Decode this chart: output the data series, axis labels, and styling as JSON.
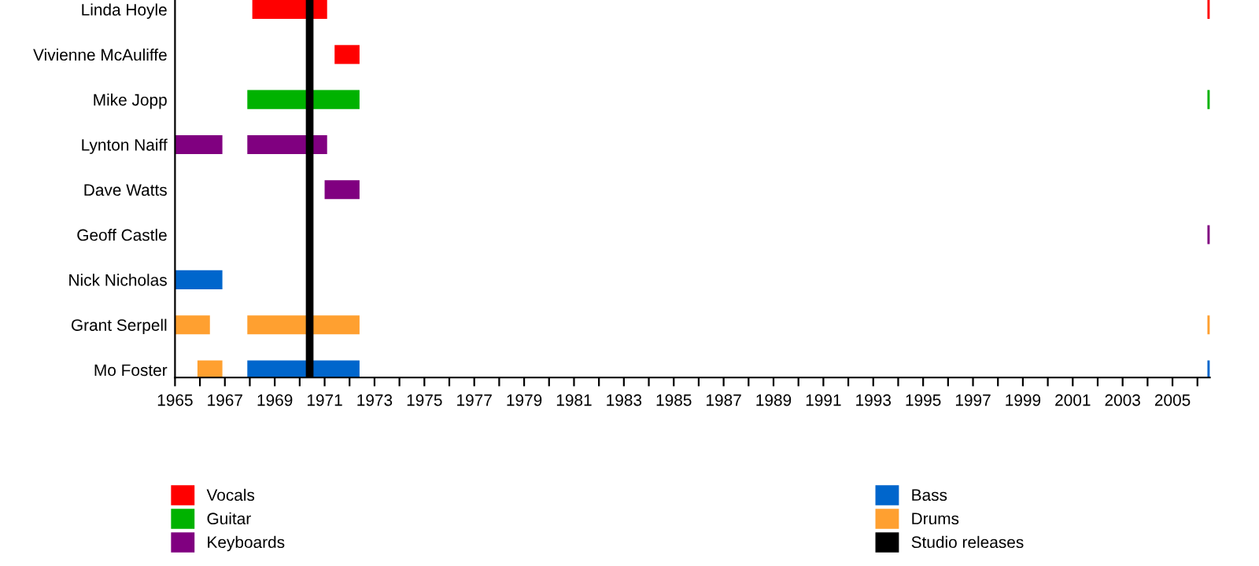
{
  "chart_data": {
    "type": "bar",
    "orientation": "horizontal",
    "categories": [
      "Linda Hoyle",
      "Vivienne McAuliffe",
      "Mike Jopp",
      "Lynton Naiff",
      "Dave Watts",
      "Geoff Castle",
      "Nick Nicholas",
      "Grant Serpell",
      "Mo Foster"
    ],
    "series": [
      {
        "name": "Vocals",
        "color": "#ff0000",
        "base": [
          1968.1,
          1971.4,
          null,
          null,
          null,
          null,
          null,
          null,
          null
        ],
        "values": [
          3.0,
          1.0,
          null,
          null,
          null,
          null,
          null,
          null,
          null
        ]
      },
      {
        "color": "#ff0000",
        "base": [
          2006.4,
          null,
          null,
          null,
          null,
          null,
          null,
          null,
          null
        ],
        "values": [
          0.1,
          null,
          null,
          null,
          null,
          null,
          null,
          null,
          null
        ]
      },
      {
        "name": "Guitar",
        "color": "#00b200",
        "base": [
          null,
          null,
          1967.9,
          null,
          null,
          null,
          null,
          null,
          null
        ],
        "values": [
          null,
          null,
          4.5,
          null,
          null,
          null,
          null,
          null,
          null
        ]
      },
      {
        "color": "#00b200",
        "base": [
          null,
          null,
          2006.4,
          null,
          null,
          null,
          null,
          null,
          null
        ],
        "values": [
          null,
          null,
          0.1,
          null,
          null,
          null,
          null,
          null,
          null
        ]
      },
      {
        "name": "Keyboards",
        "color": "#800080",
        "base": [
          null,
          null,
          null,
          1965.0,
          1971.0,
          null,
          null,
          null,
          null
        ],
        "values": [
          null,
          null,
          null,
          1.9,
          1.4,
          null,
          null,
          null,
          null
        ]
      },
      {
        "color": "#800080",
        "base": [
          null,
          null,
          null,
          1967.9,
          null,
          2006.4,
          null,
          null,
          null
        ],
        "values": [
          null,
          null,
          null,
          3.2,
          null,
          0.1,
          null,
          null,
          null
        ]
      },
      {
        "name": "Bass",
        "color": "#0066cc",
        "base": [
          null,
          null,
          null,
          null,
          null,
          null,
          1965.0,
          null,
          1967.9
        ],
        "values": [
          null,
          null,
          null,
          null,
          null,
          null,
          1.9,
          null,
          4.5
        ]
      },
      {
        "color": "#0066cc",
        "base": [
          null,
          null,
          null,
          null,
          null,
          null,
          null,
          null,
          2006.4
        ],
        "values": [
          null,
          null,
          null,
          null,
          null,
          null,
          null,
          null,
          0.1
        ]
      },
      {
        "name": "Drums",
        "color": "#ffa030",
        "base": [
          null,
          null,
          null,
          null,
          null,
          null,
          null,
          1965.0,
          1965.9
        ],
        "values": [
          null,
          null,
          null,
          null,
          null,
          null,
          null,
          1.4,
          1.0
        ]
      },
      {
        "color": "#ffa030",
        "base": [
          null,
          null,
          null,
          null,
          null,
          null,
          null,
          1967.9,
          null
        ],
        "values": [
          null,
          null,
          null,
          null,
          null,
          null,
          null,
          4.5,
          null
        ]
      },
      {
        "color": "#ffa030",
        "base": [
          null,
          null,
          null,
          null,
          null,
          null,
          null,
          2006.4,
          null
        ],
        "values": [
          null,
          null,
          null,
          null,
          null,
          null,
          null,
          0.1,
          null
        ]
      }
    ],
    "ref_lines": [
      {
        "axis": "x",
        "value": 1970.4,
        "label": "Studio releases",
        "color": "#000000"
      }
    ],
    "xlim": [
      1965,
      2006.5
    ],
    "xticks": [
      1965,
      {
        "value": 1966,
        "label": null
      },
      1967,
      {
        "value": 1968,
        "label": null
      },
      1969,
      {
        "value": 1970,
        "label": null
      },
      1971,
      {
        "value": 1972,
        "label": null
      },
      1973,
      {
        "value": 1974,
        "label": null
      },
      1975,
      {
        "value": 1976,
        "label": null
      },
      1977,
      {
        "value": 1978,
        "label": null
      },
      1979,
      {
        "value": 1980,
        "label": null
      },
      1981,
      {
        "value": 1982,
        "label": null
      },
      1983,
      {
        "value": 1984,
        "label": null
      },
      1985,
      {
        "value": 1986,
        "label": null
      },
      1987,
      {
        "value": 1988,
        "label": null
      },
      1989,
      {
        "value": 1990,
        "label": null
      },
      1991,
      {
        "value": 1992,
        "label": null
      },
      1993,
      {
        "value": 1994,
        "label": null
      },
      1995,
      {
        "value": 1996,
        "label": null
      },
      1997,
      {
        "value": 1998,
        "label": null
      },
      1999,
      {
        "value": 2000,
        "label": null
      },
      2001,
      {
        "value": 2002,
        "label": null
      },
      2003,
      {
        "value": 2004,
        "label": null
      },
      2005,
      {
        "value": 2006,
        "label": null
      }
    ],
    "grid": false,
    "legend": "bottom"
  }
}
